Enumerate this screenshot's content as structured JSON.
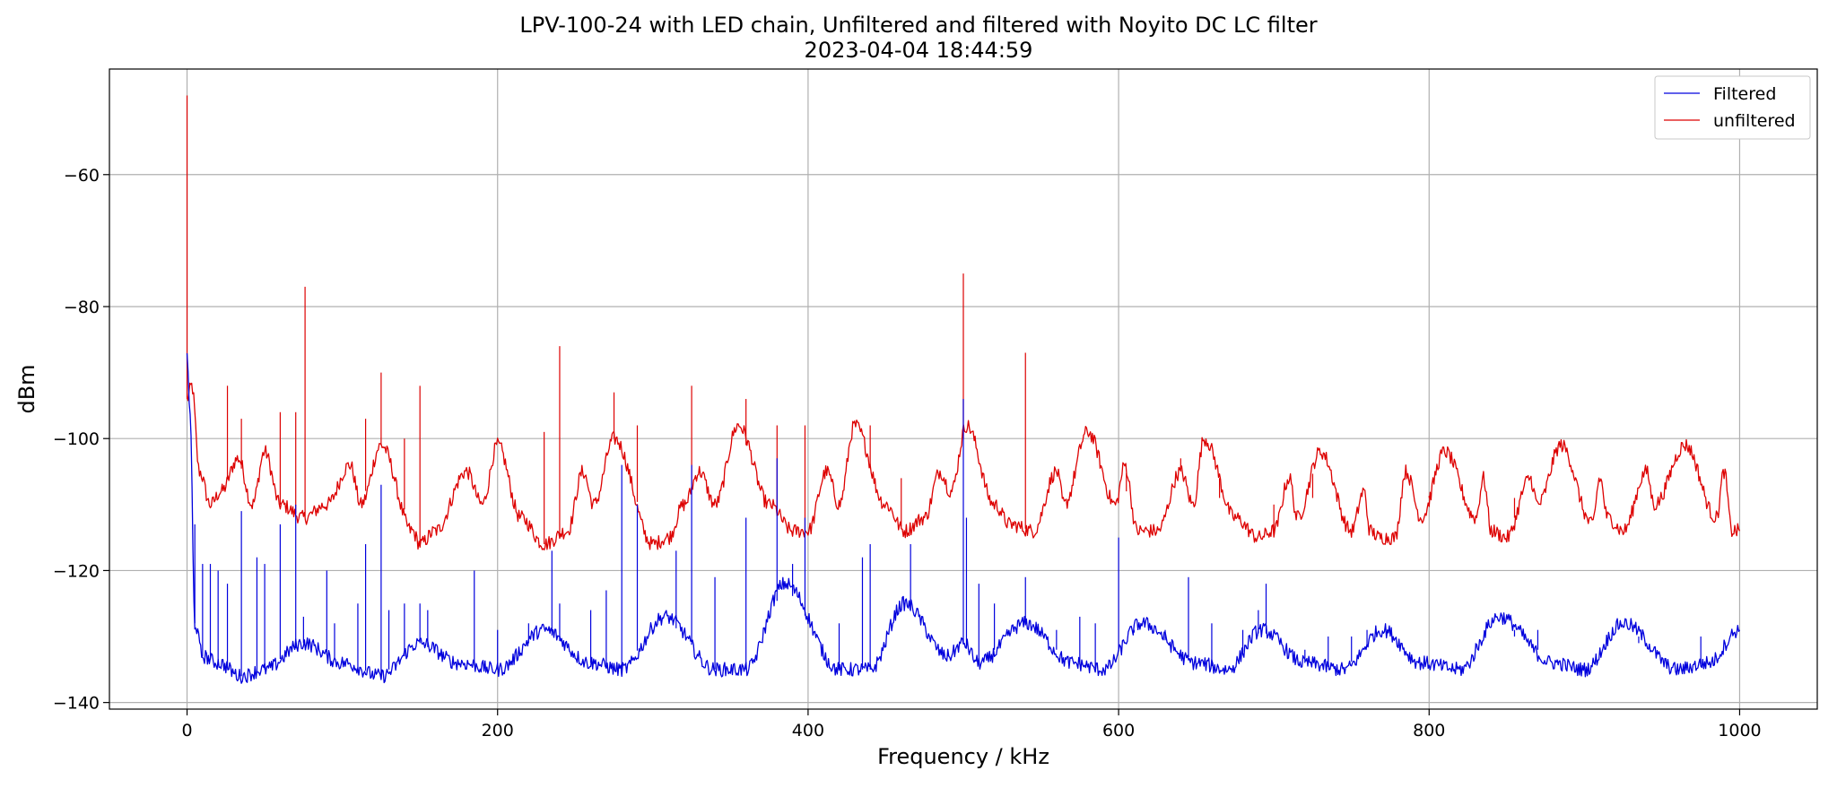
{
  "chart_data": {
    "type": "line",
    "title": "LPV-100-24 with LED chain, Unfiltered and filtered with Noyito DC LC filter",
    "subtitle": "2023-04-04 18:44:59",
    "xlabel": "Frequency / kHz",
    "ylabel": "dBm",
    "xlim": [
      -50,
      1050
    ],
    "ylim": [
      -141,
      -44
    ],
    "xticks": [
      0,
      200,
      400,
      600,
      800,
      1000
    ],
    "yticks": [
      -140,
      -120,
      -100,
      -80,
      -60
    ],
    "grid": true,
    "legend_position": "top-right",
    "series": [
      {
        "name": "Filtered",
        "color": "#0000dd",
        "points": [
          [
            0,
            -87
          ],
          [
            2,
            -97
          ],
          [
            5,
            -128
          ],
          [
            10,
            -133
          ],
          [
            20,
            -134
          ],
          [
            35,
            -136
          ],
          [
            50,
            -135
          ],
          [
            75,
            -131
          ],
          [
            100,
            -134
          ],
          [
            125,
            -136
          ],
          [
            150,
            -131
          ],
          [
            175,
            -134
          ],
          [
            200,
            -135
          ],
          [
            230,
            -129
          ],
          [
            260,
            -134
          ],
          [
            280,
            -135
          ],
          [
            308,
            -127
          ],
          [
            340,
            -135
          ],
          [
            360,
            -135
          ],
          [
            385,
            -122
          ],
          [
            420,
            -135
          ],
          [
            440,
            -135
          ],
          [
            462,
            -125
          ],
          [
            490,
            -133
          ],
          [
            500,
            -131
          ],
          [
            510,
            -134
          ],
          [
            540,
            -128
          ],
          [
            570,
            -134
          ],
          [
            590,
            -135
          ],
          [
            615,
            -128
          ],
          [
            650,
            -134
          ],
          [
            670,
            -135
          ],
          [
            692,
            -129
          ],
          [
            720,
            -134
          ],
          [
            745,
            -135
          ],
          [
            770,
            -129
          ],
          [
            795,
            -134
          ],
          [
            820,
            -135
          ],
          [
            845,
            -127
          ],
          [
            880,
            -134
          ],
          [
            900,
            -135
          ],
          [
            925,
            -128
          ],
          [
            960,
            -135
          ],
          [
            980,
            -134
          ],
          [
            1000,
            -129
          ]
        ],
        "spikes": [
          [
            5,
            -113
          ],
          [
            10,
            -119
          ],
          [
            15,
            -119
          ],
          [
            20,
            -120
          ],
          [
            26,
            -122
          ],
          [
            35,
            -111
          ],
          [
            45,
            -118
          ],
          [
            50,
            -119
          ],
          [
            60,
            -113
          ],
          [
            70,
            -110
          ],
          [
            75,
            -127
          ],
          [
            90,
            -120
          ],
          [
            95,
            -128
          ],
          [
            110,
            -125
          ],
          [
            115,
            -116
          ],
          [
            125,
            -107
          ],
          [
            130,
            -126
          ],
          [
            140,
            -125
          ],
          [
            150,
            -125
          ],
          [
            155,
            -126
          ],
          [
            185,
            -120
          ],
          [
            200,
            -129
          ],
          [
            220,
            -128
          ],
          [
            235,
            -117
          ],
          [
            240,
            -125
          ],
          [
            260,
            -126
          ],
          [
            270,
            -123
          ],
          [
            280,
            -104
          ],
          [
            290,
            -110
          ],
          [
            300,
            -129
          ],
          [
            315,
            -117
          ],
          [
            325,
            -104
          ],
          [
            340,
            -121
          ],
          [
            360,
            -112
          ],
          [
            380,
            -103
          ],
          [
            390,
            -119
          ],
          [
            398,
            -112
          ],
          [
            420,
            -128
          ],
          [
            435,
            -118
          ],
          [
            440,
            -116
          ],
          [
            466,
            -116
          ],
          [
            490,
            -132
          ],
          [
            500,
            -94
          ],
          [
            502,
            -112
          ],
          [
            510,
            -122
          ],
          [
            520,
            -125
          ],
          [
            540,
            -121
          ],
          [
            560,
            -129
          ],
          [
            575,
            -127
          ],
          [
            585,
            -128
          ],
          [
            600,
            -115
          ],
          [
            610,
            -129
          ],
          [
            630,
            -129
          ],
          [
            645,
            -121
          ],
          [
            660,
            -128
          ],
          [
            680,
            -129
          ],
          [
            690,
            -126
          ],
          [
            695,
            -122
          ],
          [
            720,
            -132
          ],
          [
            735,
            -130
          ],
          [
            750,
            -130
          ],
          [
            760,
            -129
          ],
          [
            775,
            -130
          ],
          [
            780,
            -131
          ],
          [
            830,
            -131
          ],
          [
            855,
            -130
          ],
          [
            870,
            -129
          ],
          [
            935,
            -131
          ],
          [
            975,
            -130
          ]
        ]
      },
      {
        "name": "unfiltered",
        "color": "#dd0000",
        "points": [
          [
            0,
            -94
          ],
          [
            3,
            -92
          ],
          [
            8,
            -105
          ],
          [
            15,
            -110
          ],
          [
            22,
            -108
          ],
          [
            33,
            -103
          ],
          [
            42,
            -110
          ],
          [
            50,
            -102
          ],
          [
            60,
            -110
          ],
          [
            75,
            -112
          ],
          [
            90,
            -110
          ],
          [
            105,
            -104
          ],
          [
            112,
            -110
          ],
          [
            125,
            -101
          ],
          [
            145,
            -114
          ],
          [
            150,
            -116
          ],
          [
            160,
            -114
          ],
          [
            180,
            -105
          ],
          [
            190,
            -110
          ],
          [
            200,
            -101
          ],
          [
            215,
            -112
          ],
          [
            230,
            -116
          ],
          [
            245,
            -114
          ],
          [
            255,
            -105
          ],
          [
            262,
            -110
          ],
          [
            275,
            -100
          ],
          [
            300,
            -116
          ],
          [
            310,
            -115
          ],
          [
            320,
            -110
          ],
          [
            330,
            -105
          ],
          [
            340,
            -110
          ],
          [
            355,
            -98
          ],
          [
            375,
            -110
          ],
          [
            390,
            -114
          ],
          [
            400,
            -114
          ],
          [
            412,
            -105
          ],
          [
            420,
            -110
          ],
          [
            430,
            -98
          ],
          [
            450,
            -110
          ],
          [
            462,
            -114
          ],
          [
            475,
            -112
          ],
          [
            485,
            -105
          ],
          [
            492,
            -108
          ],
          [
            502,
            -98
          ],
          [
            520,
            -110
          ],
          [
            530,
            -113
          ],
          [
            545,
            -114
          ],
          [
            560,
            -105
          ],
          [
            565,
            -110
          ],
          [
            580,
            -99
          ],
          [
            598,
            -110
          ],
          [
            604,
            -104
          ],
          [
            612,
            -114
          ],
          [
            625,
            -114
          ],
          [
            640,
            -105
          ],
          [
            648,
            -110
          ],
          [
            655,
            -100
          ],
          [
            675,
            -112
          ],
          [
            690,
            -115
          ],
          [
            700,
            -114
          ],
          [
            710,
            -106
          ],
          [
            715,
            -112
          ],
          [
            730,
            -102
          ],
          [
            750,
            -114
          ],
          [
            758,
            -108
          ],
          [
            762,
            -114
          ],
          [
            768,
            -115
          ],
          [
            778,
            -115
          ],
          [
            785,
            -105
          ],
          [
            795,
            -112
          ],
          [
            810,
            -102
          ],
          [
            830,
            -112
          ],
          [
            835,
            -106
          ],
          [
            840,
            -114
          ],
          [
            850,
            -115
          ],
          [
            865,
            -106
          ],
          [
            870,
            -110
          ],
          [
            885,
            -101
          ],
          [
            905,
            -113
          ],
          [
            910,
            -106
          ],
          [
            915,
            -112
          ],
          [
            925,
            -114
          ],
          [
            940,
            -105
          ],
          [
            945,
            -110
          ],
          [
            965,
            -101
          ],
          [
            985,
            -112
          ],
          [
            990,
            -105
          ],
          [
            995,
            -114
          ],
          [
            1000,
            -114
          ]
        ],
        "spikes": [
          [
            0,
            -48
          ],
          [
            26,
            -92
          ],
          [
            35,
            -97
          ],
          [
            60,
            -96
          ],
          [
            70,
            -96
          ],
          [
            76,
            -77
          ],
          [
            115,
            -97
          ],
          [
            125,
            -90
          ],
          [
            140,
            -100
          ],
          [
            150,
            -92
          ],
          [
            230,
            -99
          ],
          [
            240,
            -86
          ],
          [
            275,
            -93
          ],
          [
            290,
            -98
          ],
          [
            325,
            -92
          ],
          [
            360,
            -94
          ],
          [
            380,
            -98
          ],
          [
            398,
            -98
          ],
          [
            440,
            -98
          ],
          [
            460,
            -106
          ],
          [
            500,
            -75
          ],
          [
            540,
            -87
          ],
          [
            605,
            -108
          ],
          [
            640,
            -103
          ],
          [
            665,
            -109
          ],
          [
            700,
            -110
          ],
          [
            725,
            -109
          ],
          [
            800,
            -109
          ],
          [
            855,
            -109
          ]
        ]
      }
    ]
  }
}
